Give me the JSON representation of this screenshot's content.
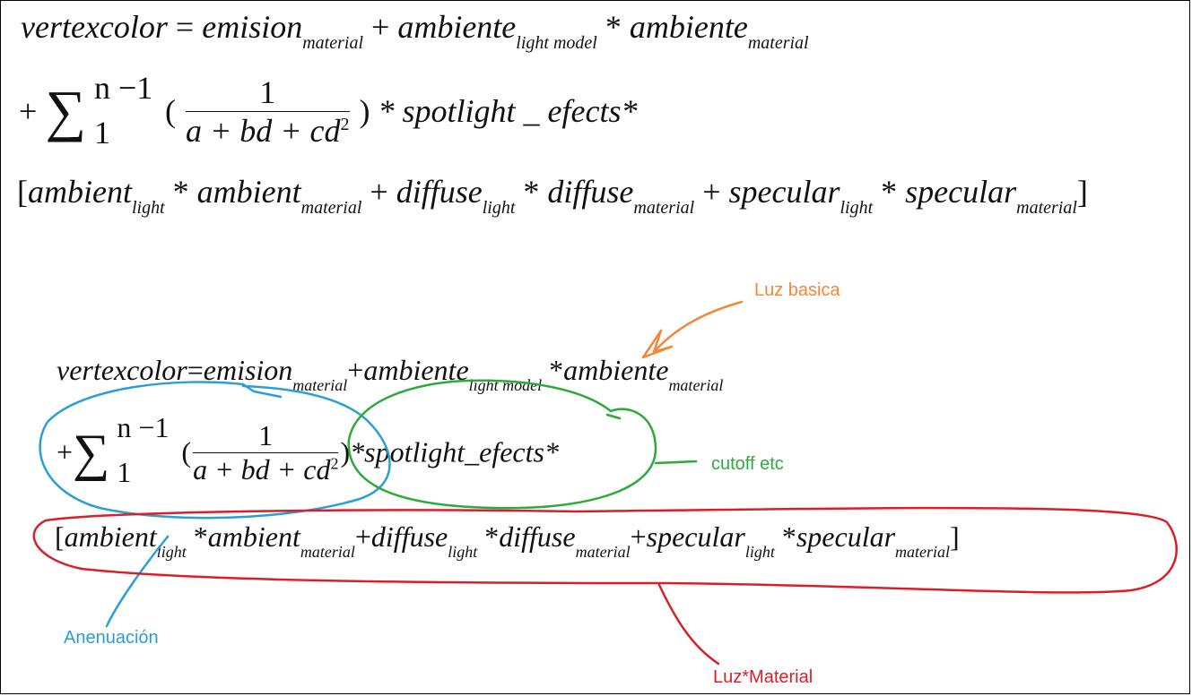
{
  "equation_top": {
    "line1": {
      "lhs": "vertexcolor",
      "eq": "=",
      "t1": "emision",
      "t1_sub": "material",
      "plus1": "+",
      "t2": "ambiente",
      "t2_sub": "light model",
      "star1": "*",
      "t3": "ambiente",
      "t3_sub": "material"
    },
    "line2": {
      "plus": "+",
      "sigma": "∑",
      "upper": "n −1",
      "lower": "1",
      "open": "(",
      "num": "1",
      "den": "a + bd + cd",
      "den_exp": "2",
      "close": ")",
      "rest": "* spotlight _ efects*"
    },
    "line3": {
      "lb": "[",
      "a1": "ambient",
      "a1_sub": "light",
      "s1": "*",
      "a2": "ambient",
      "a2_sub": "material",
      "p1": "+",
      "d1": "diffuse",
      "d1_sub": "light",
      "s2": "*",
      "d2": "diffuse",
      "d2_sub": "material",
      "p2": "+",
      "sp1": "specular",
      "sp1_sub": "light",
      "s3": "*",
      "sp2": "specular",
      "sp2_sub": "material",
      "rb": "]"
    }
  },
  "equation_bottom": {
    "line1": {
      "lhs": "vertexcolor",
      "eq": "=",
      "t1": "emision",
      "t1_sub": "material",
      "plus1": "+",
      "t2": "ambiente",
      "t2_sub": "light model",
      "star1": "*",
      "t3": "ambiente",
      "t3_sub": "material"
    },
    "line2": {
      "plus": "+",
      "sigma": "∑",
      "upper": "n −1",
      "lower": "1",
      "open": "(",
      "num": "1",
      "den": "a + bd + cd",
      "den_exp": "2",
      "close": ")",
      "rest": "*spotlight_efects*"
    },
    "line3": {
      "lb": "[",
      "a1": "ambient",
      "a1_sub": "light",
      "s1": "*",
      "a2": "ambient",
      "a2_sub": "material",
      "p1": "+",
      "d1": "diffuse",
      "d1_sub": "light",
      "s2": "*",
      "d2": "diffuse",
      "d2_sub": "material",
      "p2": "+",
      "sp1": "specular",
      "sp1_sub": "light",
      "s3": "*",
      "sp2": "specular",
      "sp2_sub": "material",
      "rb": "]"
    }
  },
  "annotations": {
    "luz_basica": {
      "text": "Luz basica",
      "color": "#f0883a"
    },
    "cutoff": {
      "text": "cutoff etc",
      "color": "#2eaa3c"
    },
    "atenuacion": {
      "text": "Anenuación",
      "color": "#2a9fd6"
    },
    "luz_material": {
      "text": "Luz*Material",
      "color": "#d9202a"
    }
  }
}
